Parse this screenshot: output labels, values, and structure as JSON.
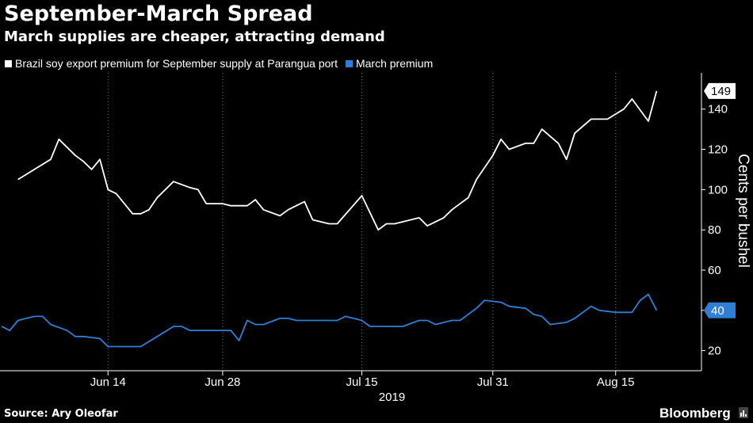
{
  "header": {
    "title": "September-March Spread",
    "subtitle": "March supplies are cheaper, attracting demand"
  },
  "footer": {
    "source": "Source: Ary Oleofar",
    "brand": "Bloomberg",
    "brand_icon": "bar-chart-icon"
  },
  "colors": {
    "background": "#000000",
    "september_series": "#ffffff",
    "march_series": "#2f7fd6",
    "grid": "#7a7a7a",
    "axis": "#ffffff"
  },
  "chart_data": {
    "type": "line",
    "title": "September-March Spread",
    "ylabel": "Cents per bushel",
    "xlabel": "2019",
    "ylim": [
      10,
      158
    ],
    "yticks": [
      20,
      40,
      60,
      80,
      100,
      120,
      140
    ],
    "grid": "vertical-dotted",
    "legend_position": "top-left",
    "x_range": [
      "2019-06-01",
      "2019-08-25"
    ],
    "x_ticks": [
      {
        "date": "2019-06-14",
        "label": "Jun 14"
      },
      {
        "date": "2019-06-28",
        "label": "Jun 28"
      },
      {
        "date": "2019-07-15",
        "label": "Jul 15"
      },
      {
        "date": "2019-07-31",
        "label": "Jul 31"
      },
      {
        "date": "2019-08-15",
        "label": "Aug 15"
      }
    ],
    "year_label": "2019",
    "series": [
      {
        "name": "Brazil soy export premium for September supply at Parangua port",
        "end_label": "149",
        "end_value": 149,
        "points": [
          [
            "2019-06-03",
            105
          ],
          [
            "2019-06-05",
            110
          ],
          [
            "2019-06-07",
            115
          ],
          [
            "2019-06-08",
            125
          ],
          [
            "2019-06-10",
            117
          ],
          [
            "2019-06-11",
            114
          ],
          [
            "2019-06-12",
            110
          ],
          [
            "2019-06-13",
            115
          ],
          [
            "2019-06-14",
            100
          ],
          [
            "2019-06-15",
            98
          ],
          [
            "2019-06-17",
            88
          ],
          [
            "2019-06-18",
            88
          ],
          [
            "2019-06-19",
            90
          ],
          [
            "2019-06-20",
            96
          ],
          [
            "2019-06-22",
            104
          ],
          [
            "2019-06-24",
            101
          ],
          [
            "2019-06-25",
            100
          ],
          [
            "2019-06-26",
            93
          ],
          [
            "2019-06-28",
            93
          ],
          [
            "2019-06-29",
            92
          ],
          [
            "2019-07-01",
            92
          ],
          [
            "2019-07-02",
            95
          ],
          [
            "2019-07-03",
            90
          ],
          [
            "2019-07-05",
            87
          ],
          [
            "2019-07-06",
            90
          ],
          [
            "2019-07-08",
            94
          ],
          [
            "2019-07-09",
            85
          ],
          [
            "2019-07-11",
            83
          ],
          [
            "2019-07-12",
            83
          ],
          [
            "2019-07-15",
            97
          ],
          [
            "2019-07-17",
            80
          ],
          [
            "2019-07-18",
            83
          ],
          [
            "2019-07-19",
            83
          ],
          [
            "2019-07-20",
            84
          ],
          [
            "2019-07-22",
            86
          ],
          [
            "2019-07-23",
            82
          ],
          [
            "2019-07-25",
            86
          ],
          [
            "2019-07-26",
            90
          ],
          [
            "2019-07-28",
            96
          ],
          [
            "2019-07-29",
            105
          ],
          [
            "2019-07-31",
            117
          ],
          [
            "2019-08-01",
            125
          ],
          [
            "2019-08-02",
            120
          ],
          [
            "2019-08-04",
            123
          ],
          [
            "2019-08-05",
            123
          ],
          [
            "2019-08-06",
            130
          ],
          [
            "2019-08-08",
            123
          ],
          [
            "2019-08-09",
            115
          ],
          [
            "2019-08-10",
            128
          ],
          [
            "2019-08-12",
            135
          ],
          [
            "2019-08-13",
            135
          ],
          [
            "2019-08-14",
            135
          ],
          [
            "2019-08-16",
            140
          ],
          [
            "2019-08-17",
            145
          ],
          [
            "2019-08-19",
            134
          ],
          [
            "2019-08-20",
            149
          ]
        ]
      },
      {
        "name": "March premium",
        "end_label": "40",
        "end_value": 40,
        "points": [
          [
            "2019-06-01",
            32
          ],
          [
            "2019-06-02",
            30
          ],
          [
            "2019-06-03",
            35
          ],
          [
            "2019-06-05",
            37
          ],
          [
            "2019-06-06",
            37
          ],
          [
            "2019-06-07",
            33
          ],
          [
            "2019-06-09",
            30
          ],
          [
            "2019-06-10",
            27
          ],
          [
            "2019-06-11",
            27
          ],
          [
            "2019-06-13",
            26
          ],
          [
            "2019-06-14",
            22
          ],
          [
            "2019-06-16",
            22
          ],
          [
            "2019-06-17",
            22
          ],
          [
            "2019-06-18",
            22
          ],
          [
            "2019-06-20",
            27
          ],
          [
            "2019-06-22",
            32
          ],
          [
            "2019-06-23",
            32
          ],
          [
            "2019-06-24",
            30
          ],
          [
            "2019-06-26",
            30
          ],
          [
            "2019-06-28",
            30
          ],
          [
            "2019-06-29",
            30
          ],
          [
            "2019-06-30",
            25
          ],
          [
            "2019-07-01",
            35
          ],
          [
            "2019-07-02",
            33
          ],
          [
            "2019-07-03",
            33
          ],
          [
            "2019-07-05",
            36
          ],
          [
            "2019-07-06",
            36
          ],
          [
            "2019-07-07",
            35
          ],
          [
            "2019-07-09",
            35
          ],
          [
            "2019-07-11",
            35
          ],
          [
            "2019-07-12",
            35
          ],
          [
            "2019-07-13",
            37
          ],
          [
            "2019-07-15",
            35
          ],
          [
            "2019-07-16",
            32
          ],
          [
            "2019-07-18",
            32
          ],
          [
            "2019-07-20",
            32
          ],
          [
            "2019-07-22",
            35
          ],
          [
            "2019-07-23",
            35
          ],
          [
            "2019-07-24",
            33
          ],
          [
            "2019-07-26",
            35
          ],
          [
            "2019-07-27",
            35
          ],
          [
            "2019-07-29",
            41
          ],
          [
            "2019-07-30",
            45
          ],
          [
            "2019-08-01",
            44
          ],
          [
            "2019-08-02",
            42
          ],
          [
            "2019-08-04",
            41
          ],
          [
            "2019-08-05",
            38
          ],
          [
            "2019-08-06",
            37
          ],
          [
            "2019-08-07",
            33
          ],
          [
            "2019-08-09",
            34
          ],
          [
            "2019-08-10",
            36
          ],
          [
            "2019-08-12",
            42
          ],
          [
            "2019-08-13",
            40
          ],
          [
            "2019-08-15",
            39
          ],
          [
            "2019-08-17",
            39
          ],
          [
            "2019-08-18",
            45
          ],
          [
            "2019-08-19",
            48
          ],
          [
            "2019-08-20",
            40
          ]
        ]
      }
    ]
  }
}
